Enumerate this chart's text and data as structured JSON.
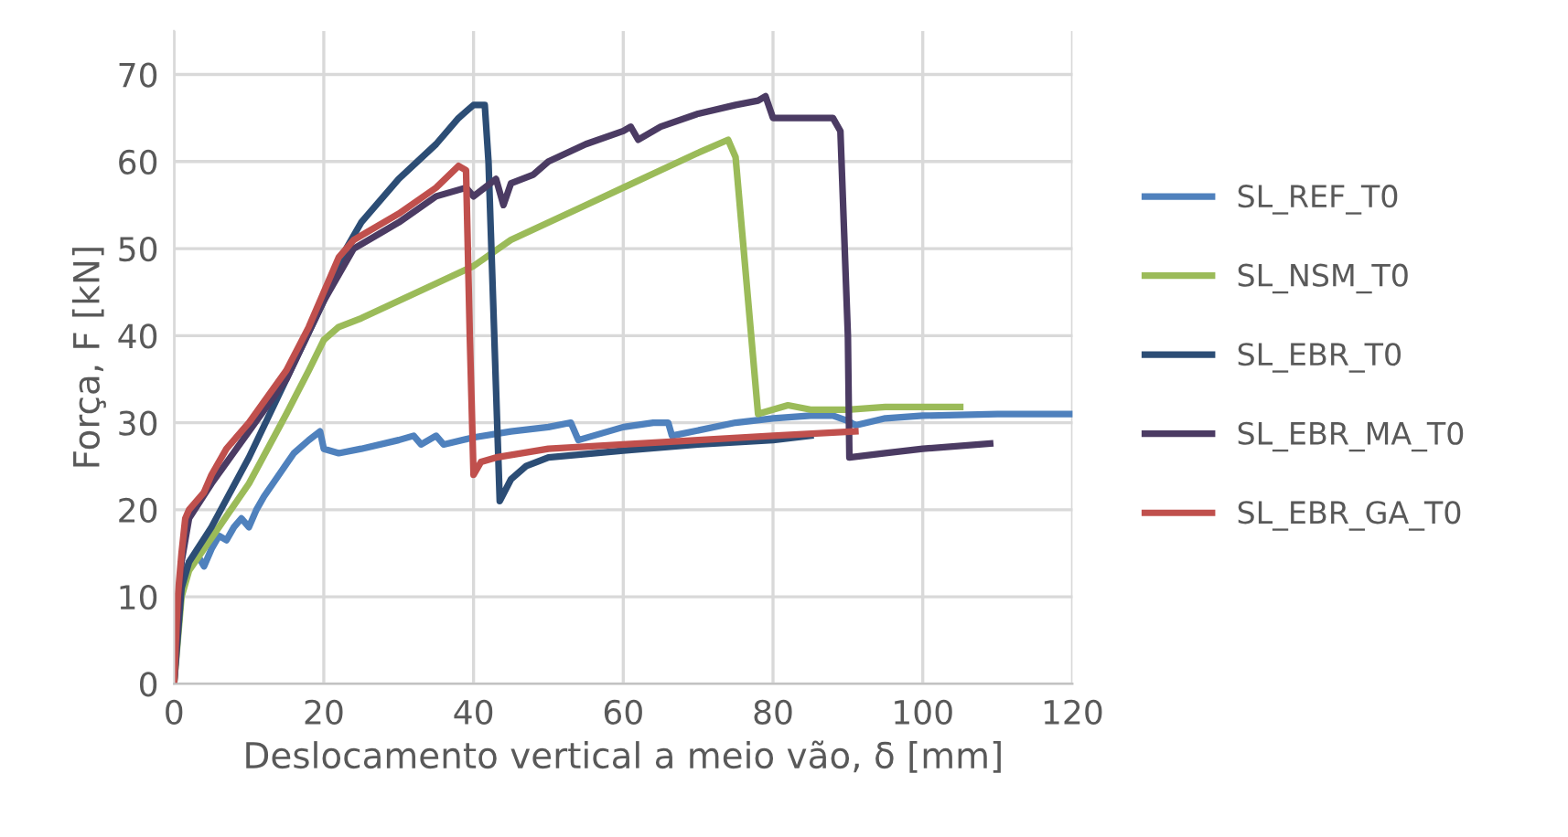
{
  "chart_data": {
    "type": "line",
    "xlabel": "Deslocamento vertical a meio vão, δ [mm]",
    "ylabel": "Força, F [kN]",
    "xlim": [
      0,
      120
    ],
    "ylim": [
      0,
      75
    ],
    "xticks": [
      0,
      20,
      40,
      60,
      80,
      100,
      120
    ],
    "yticks": [
      0,
      10,
      20,
      30,
      40,
      50,
      60,
      70
    ],
    "grid": true,
    "legend": "right",
    "marker": "none",
    "line_style": "solid",
    "series": [
      {
        "name": "SL_REF_T0",
        "color": "#4f81bd",
        "x": [
          1,
          2,
          3,
          4,
          5,
          6,
          7,
          8,
          9,
          10,
          11,
          12,
          14,
          16,
          18,
          19.5,
          20,
          22,
          25,
          30,
          32,
          33,
          35,
          36,
          40,
          45,
          50,
          53,
          54,
          60,
          64,
          66,
          66.5,
          75,
          80,
          85,
          88,
          90,
          91,
          95,
          100,
          110,
          120
        ],
        "values": [
          11,
          14,
          15,
          13.5,
          15.5,
          17,
          16.5,
          18,
          19,
          18,
          20,
          21.5,
          24,
          26.5,
          28,
          29,
          27,
          26.5,
          27,
          28,
          28.5,
          27.5,
          28.5,
          27.5,
          28.3,
          29,
          29.5,
          30,
          28,
          29.5,
          30,
          30,
          28.5,
          30,
          30.5,
          30.8,
          30.8,
          30.2,
          29.7,
          30.5,
          30.8,
          31,
          31
        ]
      },
      {
        "name": "SL_NSM_T0",
        "color": "#9bbb59",
        "x": [
          0,
          1,
          2,
          4,
          6,
          10,
          15,
          18,
          20,
          22,
          25,
          30,
          35,
          40,
          45,
          50,
          55,
          60,
          65,
          70,
          74,
          75,
          78,
          80,
          82,
          85,
          90,
          95,
          105
        ],
        "values": [
          0,
          10,
          13,
          15.5,
          18,
          23,
          31,
          36,
          39.5,
          41,
          42,
          44,
          46,
          48,
          51,
          53,
          55,
          57,
          59,
          61,
          62.5,
          60.5,
          31,
          31.5,
          32,
          31.5,
          31.5,
          31.8,
          31.8
        ]
      },
      {
        "name": "SL_EBR_T0",
        "color": "#2c4d75",
        "x": [
          0,
          1,
          2,
          5,
          10,
          15,
          20,
          23,
          25,
          30,
          35,
          38,
          40,
          41.5,
          42,
          43.5,
          45,
          47,
          50,
          60,
          70,
          80,
          85
        ],
        "values": [
          0,
          11,
          14,
          18,
          26,
          35,
          44,
          50,
          53,
          58,
          62,
          65,
          66.5,
          66.5,
          60,
          21,
          23.5,
          25,
          26,
          26.8,
          27.5,
          28,
          28.5
        ]
      },
      {
        "name": "SL_EBR_MA_T0",
        "color": "#4b3b63",
        "x": [
          0,
          1,
          2,
          5,
          10,
          15,
          20,
          24,
          30,
          35,
          39,
          40,
          43,
          44,
          45,
          48,
          50,
          55,
          60,
          61,
          62,
          65,
          70,
          75,
          78,
          79,
          80,
          82,
          85,
          88,
          89,
          90,
          90.2,
          95,
          100,
          109
        ],
        "values": [
          0,
          14,
          19,
          23,
          29,
          35,
          44,
          50,
          53,
          56,
          57,
          56,
          58,
          55,
          57.5,
          58.5,
          60,
          62,
          63.5,
          64,
          62.5,
          64,
          65.5,
          66.5,
          67,
          67.5,
          65,
          65,
          65,
          65,
          63.5,
          40,
          26,
          26.5,
          27,
          27.6
        ]
      },
      {
        "name": "SL_EBR_GA_T0",
        "color": "#c0504d",
        "x": [
          0,
          0.5,
          1,
          1.5,
          2,
          4,
          5,
          7,
          10,
          15,
          18,
          20,
          22,
          24,
          30,
          35,
          38,
          39,
          39.5,
          40,
          41,
          43,
          50,
          60,
          70,
          80,
          91
        ],
        "values": [
          0,
          10,
          15,
          19,
          20,
          22,
          24,
          27,
          30,
          36,
          41,
          45,
          49,
          51,
          54,
          57,
          59.5,
          59,
          40,
          24,
          25.5,
          26,
          27,
          27.5,
          28,
          28.5,
          29
        ]
      }
    ]
  }
}
